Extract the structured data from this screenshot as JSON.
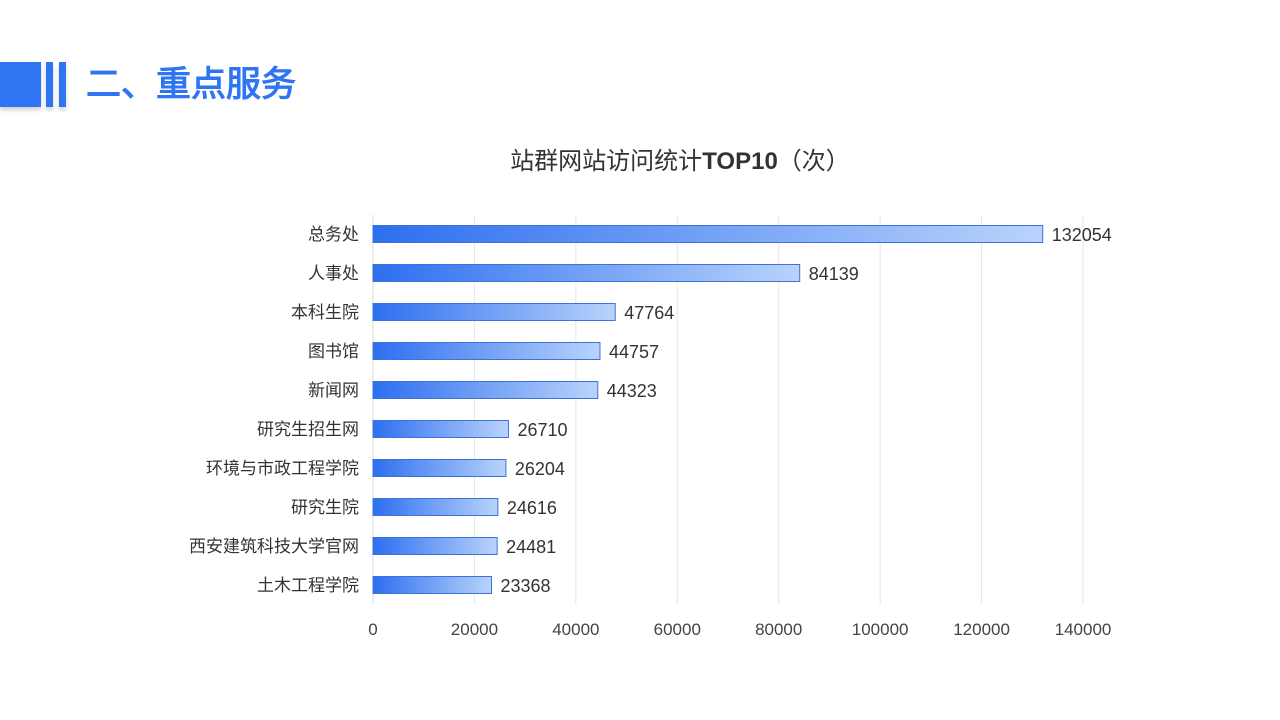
{
  "header": {
    "title": "二、重点服务",
    "accent_color": "#2f74f2"
  },
  "chart_data": {
    "type": "bar",
    "orientation": "horizontal",
    "title_main": "站群网站访问统计",
    "title_bold": "TOP10",
    "title_unit": "（次）",
    "categories": [
      "总务处",
      "人事处",
      "本科生院",
      "图书馆",
      "新闻网",
      "研究生招生网",
      "环境与市政工程学院",
      "研究生院",
      "西安建筑科技大学官网",
      "土木工程学院"
    ],
    "values": [
      132054,
      84139,
      47764,
      44757,
      44323,
      26710,
      26204,
      24616,
      24481,
      23368
    ],
    "xlim": [
      0,
      140000
    ],
    "xticks": [
      "0",
      "20000",
      "40000",
      "60000",
      "80000",
      "100000",
      "120000",
      "140000"
    ],
    "grid": true,
    "data_labels": true,
    "bar_color_start": "#2d6ff0",
    "bar_color_end": "#b9d3fb"
  }
}
